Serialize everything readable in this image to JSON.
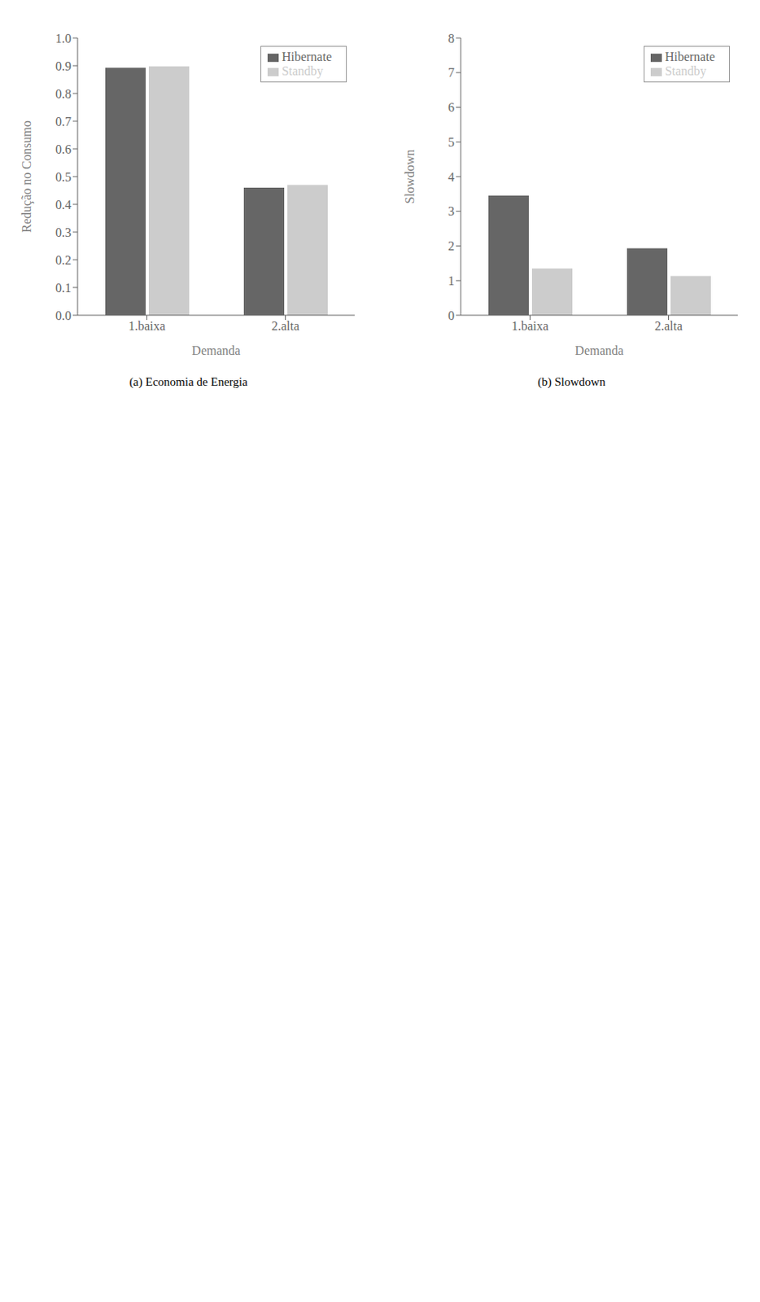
{
  "chart_data": [
    {
      "type": "bar",
      "title": "(a) Economia de Energia",
      "xlabel": "Demanda",
      "ylabel": "Redução no Consumo",
      "categories": [
        "1.baixa",
        "2.alta"
      ],
      "series": [
        {
          "name": "Hibernate",
          "color": "#666666",
          "values": [
            0.893,
            0.46
          ]
        },
        {
          "name": "Standby",
          "color": "#cccccc",
          "values": [
            0.898,
            0.47
          ]
        }
      ],
      "ylim": [
        0.0,
        1.0
      ],
      "yticks": [
        {
          "value": 0.0,
          "label": "0.0"
        },
        0.1,
        0.2,
        0.3,
        0.4,
        0.5,
        0.6,
        0.7,
        0.8,
        0.9,
        {
          "value": 1.0,
          "label": "1.0"
        }
      ],
      "grid": false,
      "legend": "upper right"
    },
    {
      "type": "bar",
      "title": "(b) Slowdown",
      "xlabel": "Demanda",
      "ylabel": "Slowdown",
      "categories": [
        "1.baixa",
        "2.alta"
      ],
      "series": [
        {
          "name": "Hibernate",
          "color": "#666666",
          "values": [
            3.45,
            1.93
          ]
        },
        {
          "name": "Standby",
          "color": "#cccccc",
          "values": [
            1.35,
            1.13
          ]
        }
      ],
      "ylim": [
        0,
        8
      ],
      "yticks": [
        0,
        1,
        2,
        3,
        4,
        5,
        6,
        7,
        8
      ],
      "grid": false,
      "legend": "upper right"
    }
  ]
}
